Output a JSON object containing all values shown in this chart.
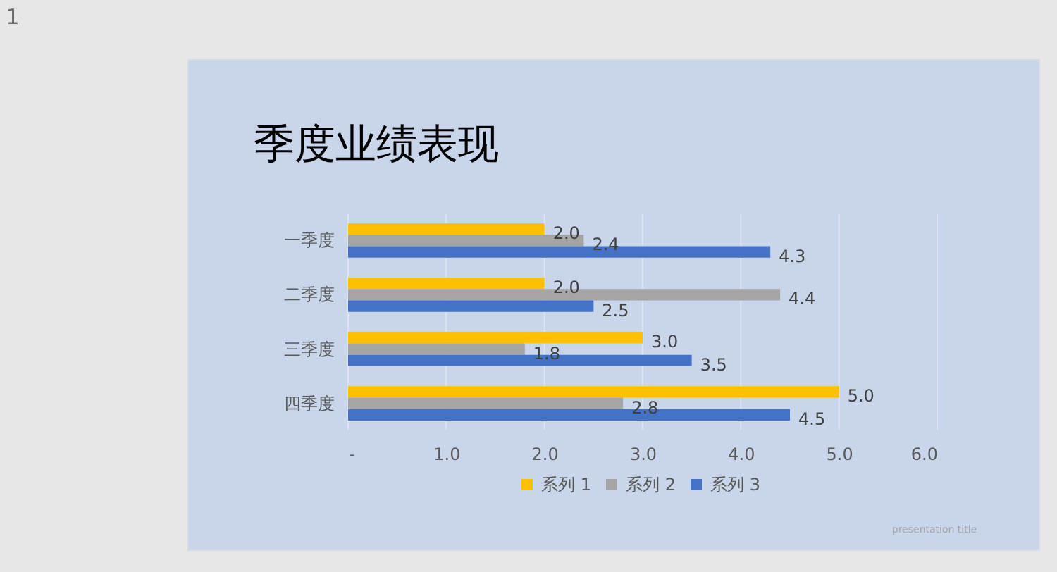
{
  "chart_data": {
    "type": "bar",
    "orientation": "horizontal",
    "title": "季度业绩表现",
    "categories": [
      "一季度",
      "二季度",
      "三季度",
      "四季度"
    ],
    "series": [
      {
        "name": "系列 1",
        "color": "#ffc000",
        "values": [
          2.0,
          2.0,
          3.0,
          5.0
        ],
        "value_labels": [
          "2.0",
          "2.0",
          "3.0",
          "5.0"
        ]
      },
      {
        "name": "系列 2",
        "color": "#a5a5a5",
        "values": [
          2.4,
          4.4,
          1.8,
          2.8
        ],
        "value_labels": [
          "2.4",
          "4.4",
          "1.8",
          "2.8"
        ]
      },
      {
        "name": "系列 3",
        "color": "#4472c4",
        "values": [
          4.3,
          2.5,
          3.5,
          4.5
        ],
        "value_labels": [
          "4.3",
          "2.5",
          "3.5",
          "4.5"
        ]
      }
    ],
    "xlim": [
      0,
      6
    ],
    "xticks": [
      {
        "value": 0,
        "label": "-"
      },
      {
        "value": 1,
        "label": "1.0"
      },
      {
        "value": 2,
        "label": "2.0"
      },
      {
        "value": 3,
        "label": "3.0"
      },
      {
        "value": 4,
        "label": "4.0"
      },
      {
        "value": 5,
        "label": "5.0"
      },
      {
        "value": 6,
        "label": "6.0"
      }
    ],
    "grid": "x",
    "legend": "bottom",
    "annotations": [
      "presentation title",
      "1"
    ]
  }
}
